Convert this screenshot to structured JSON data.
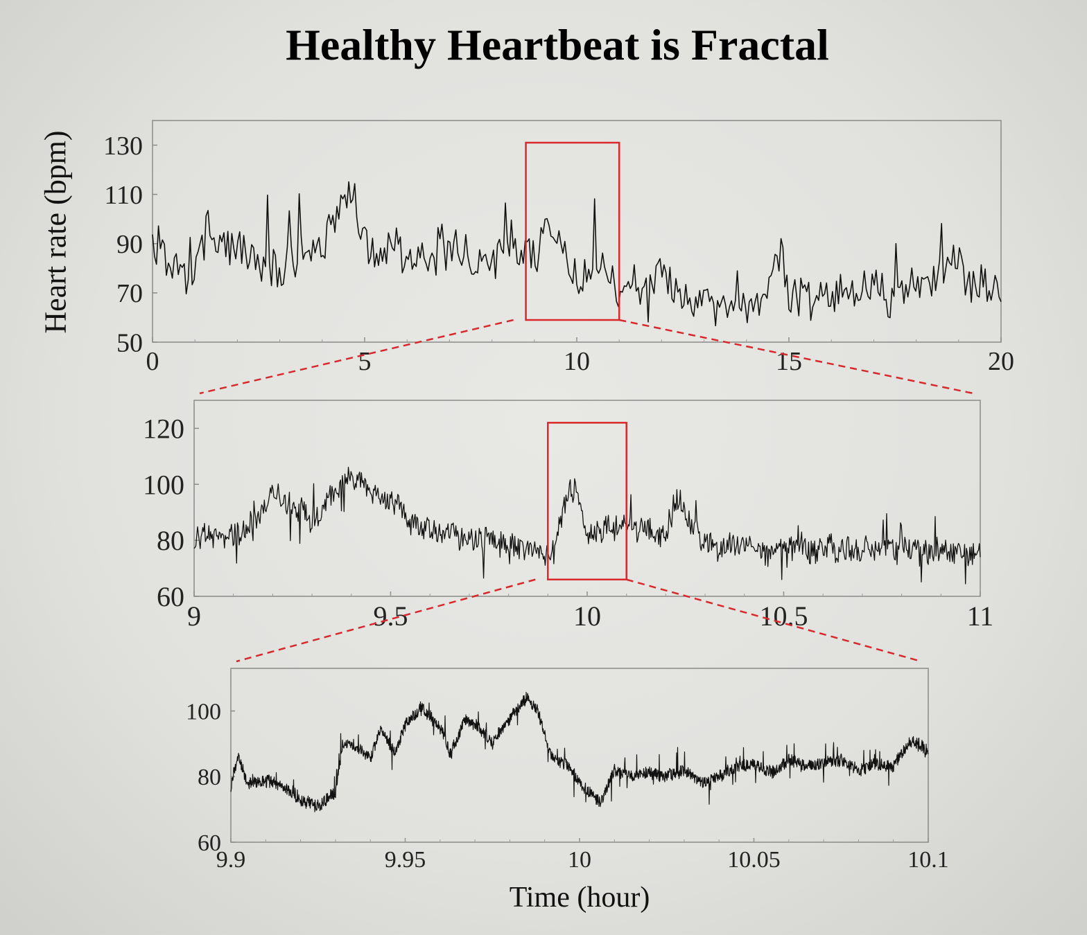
{
  "title": "Healthy Heartbeat is Fractal",
  "ylabel": "Heart rate (bpm)",
  "xlabel": "Time (hour)",
  "colors": {
    "trace": "#111111",
    "zoom": "#d9282b",
    "frame": "#8a8a88"
  },
  "chart_data": [
    {
      "type": "line",
      "title": "",
      "xlabel": "",
      "ylabel": "Heart rate (bpm)",
      "xlim": [
        0,
        20
      ],
      "ylim": [
        50,
        140
      ],
      "xticks": [
        0,
        5,
        10,
        15,
        20
      ],
      "yticks": [
        50,
        70,
        90,
        110,
        130
      ],
      "zoom_region": {
        "x": [
          8.8,
          11.0
        ],
        "y": [
          59,
          131
        ]
      },
      "series": [
        {
          "name": "Heart rate",
          "x": [
            0,
            0.5,
            1.0,
            1.3,
            1.5,
            2,
            2.5,
            3,
            3.5,
            4,
            4.3,
            4.5,
            4.8,
            5,
            5.5,
            6,
            6.5,
            7,
            7.5,
            8,
            8.5,
            9,
            9.3,
            9.6,
            10,
            10.5,
            11,
            11.5,
            12,
            12.5,
            13,
            13.5,
            14,
            14.5,
            14.8,
            15,
            15.5,
            16,
            16.5,
            17,
            17.5,
            18,
            18.5,
            18.9,
            19.2,
            19.5,
            20
          ],
          "values": [
            90,
            78,
            76,
            100,
            87,
            85,
            85,
            82,
            84,
            86,
            100,
            112,
            103,
            90,
            87,
            86,
            87,
            85,
            83,
            84,
            89,
            84,
            100,
            88,
            81,
            78,
            75,
            74,
            73,
            71,
            69,
            66,
            68,
            71,
            86,
            72,
            67,
            70,
            72,
            73,
            70,
            71,
            74,
            88,
            76,
            71,
            73
          ]
        }
      ]
    },
    {
      "type": "line",
      "title": "",
      "xlabel": "",
      "ylabel": "",
      "xlim": [
        9,
        11
      ],
      "ylim": [
        60,
        130
      ],
      "xticks": [
        9,
        9.5,
        10,
        10.5,
        11
      ],
      "yticks": [
        60,
        80,
        100,
        120
      ],
      "zoom_region": {
        "x": [
          9.9,
          10.1
        ],
        "y": [
          66,
          122
        ]
      },
      "series": [
        {
          "name": "Heart rate",
          "x": [
            9.0,
            9.1,
            9.15,
            9.2,
            9.25,
            9.3,
            9.35,
            9.4,
            9.45,
            9.5,
            9.55,
            9.6,
            9.7,
            9.8,
            9.9,
            9.92,
            9.95,
            9.97,
            10.0,
            10.05,
            10.1,
            10.15,
            10.2,
            10.23,
            10.3,
            10.4,
            10.5,
            10.6,
            10.7,
            10.8,
            10.9,
            11.0
          ],
          "values": [
            82,
            82,
            85,
            98,
            92,
            88,
            96,
            103,
            98,
            95,
            86,
            85,
            81,
            78,
            76,
            78,
            96,
            100,
            80,
            84,
            86,
            84,
            83,
            93,
            79,
            77,
            76,
            77,
            76,
            77,
            76,
            76
          ]
        }
      ]
    },
    {
      "type": "line",
      "title": "",
      "xlabel": "Time (hour)",
      "ylabel": "",
      "xlim": [
        9.9,
        10.1
      ],
      "ylim": [
        60,
        113
      ],
      "xticks": [
        9.9,
        9.95,
        10,
        10.05,
        10.1
      ],
      "yticks": [
        60,
        80,
        100
      ],
      "series": [
        {
          "name": "Heart rate",
          "x": [
            9.9,
            9.902,
            9.905,
            9.91,
            9.915,
            9.92,
            9.925,
            9.93,
            9.932,
            9.935,
            9.94,
            9.943,
            9.947,
            9.95,
            9.955,
            9.96,
            9.963,
            9.967,
            9.97,
            9.975,
            9.98,
            9.985,
            9.988,
            9.992,
            9.997,
            10.0,
            10.006,
            10.01,
            10.015,
            10.02,
            10.025,
            10.03,
            10.035,
            10.04,
            10.045,
            10.05,
            10.055,
            10.06,
            10.065,
            10.07,
            10.075,
            10.08,
            10.085,
            10.09,
            10.095,
            10.1
          ],
          "values": [
            77,
            86,
            78,
            79,
            77,
            73,
            71,
            75,
            90,
            90,
            85,
            95,
            87,
            96,
            101,
            95,
            87,
            97,
            96,
            90,
            98,
            104,
            100,
            86,
            83,
            78,
            72,
            82,
            80,
            81,
            80,
            82,
            78,
            80,
            83,
            84,
            81,
            85,
            83,
            84,
            85,
            82,
            84,
            83,
            91,
            88
          ]
        }
      ]
    }
  ]
}
